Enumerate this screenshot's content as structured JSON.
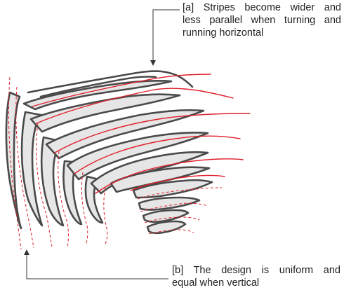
{
  "annotations": {
    "a": {
      "line1": "[a] Stripes become wider and",
      "line2": "less parallel when turning and",
      "line3": "running horizontal"
    },
    "b": {
      "line1": "[b] The design is uniform and",
      "line2": "equal when vertical"
    }
  },
  "colors": {
    "stripe_fill": "#e6e6e6",
    "stripe_outline": "#4a4a4a",
    "direction_lines": "#e0202a",
    "text": "#222222"
  }
}
